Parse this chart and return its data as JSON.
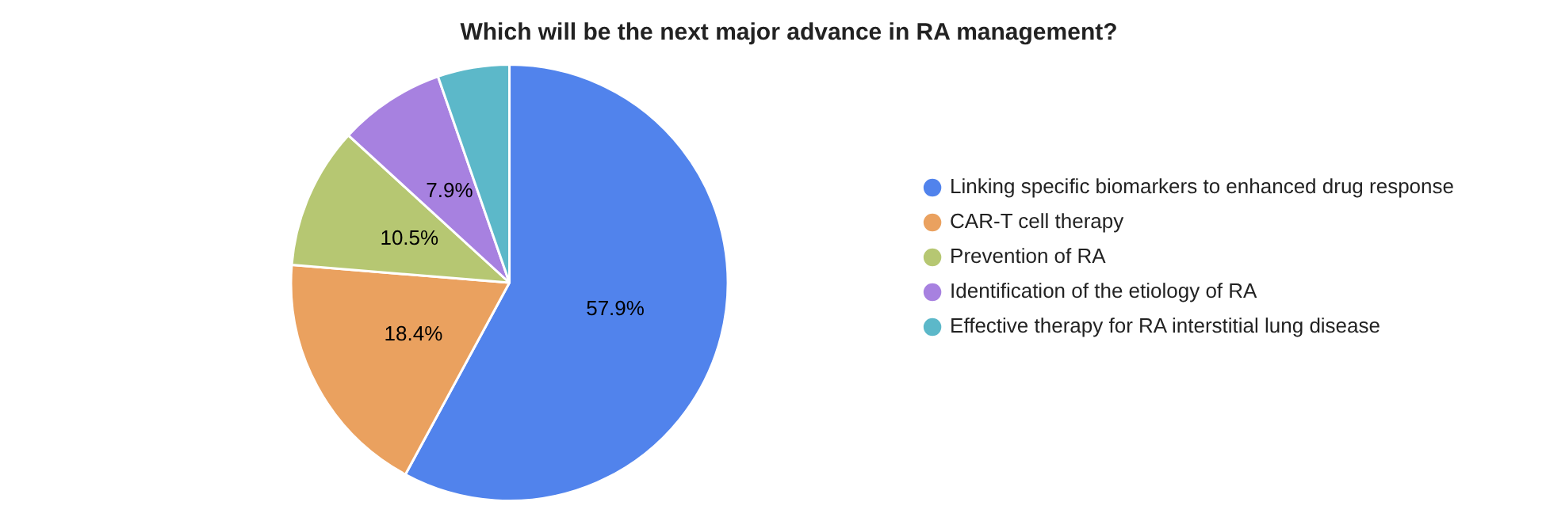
{
  "chart_data": {
    "type": "pie",
    "title": "Which will be the next major advance in RA management?",
    "categories": [
      "Linking specific biomarkers to enhanced drug response",
      "CAR-T cell therapy",
      "Prevention of RA",
      "Identification of the etiology of RA",
      "Effective therapy for RA interstitial lung disease"
    ],
    "values": [
      57.9,
      18.4,
      10.5,
      7.9,
      5.3
    ],
    "value_labels": [
      "57.9%",
      "18.4%",
      "10.5%",
      "7.9%",
      null
    ],
    "colors": [
      "#5183ec",
      "#eaa15f",
      "#b6c772",
      "#a781e0",
      "#5cb8c9"
    ],
    "legend": "right"
  }
}
